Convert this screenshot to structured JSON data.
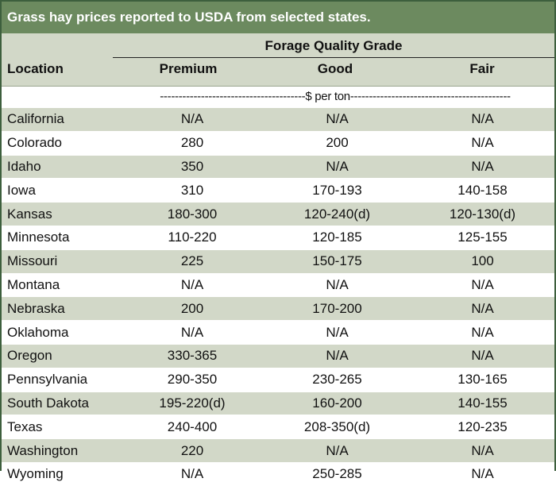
{
  "title": "Grass hay prices reported to USDA from selected states.",
  "header": {
    "location": "Location",
    "group": "Forage Quality Grade",
    "columns": [
      "Premium",
      "Good",
      "Fair"
    ]
  },
  "unit_row": "---------------------------------------$ per ton-------------------------------------------",
  "rows": [
    {
      "location": "California",
      "premium": "N/A",
      "good": "N/A",
      "fair": "N/A"
    },
    {
      "location": "Colorado",
      "premium": "280",
      "good": "200",
      "fair": "N/A"
    },
    {
      "location": "Idaho",
      "premium": "350",
      "good": "N/A",
      "fair": "N/A"
    },
    {
      "location": "Iowa",
      "premium": "310",
      "good": "170-193",
      "fair": "140-158"
    },
    {
      "location": "Kansas",
      "premium": "180-300",
      "good": "120-240(d)",
      "fair": "120-130(d)"
    },
    {
      "location": "Minnesota",
      "premium": "110-220",
      "good": "120-185",
      "fair": "125-155"
    },
    {
      "location": "Missouri",
      "premium": "225",
      "good": "150-175",
      "fair": "100"
    },
    {
      "location": "Montana",
      "premium": "N/A",
      "good": "N/A",
      "fair": "N/A"
    },
    {
      "location": "Nebraska",
      "premium": "200",
      "good": "170-200",
      "fair": "N/A"
    },
    {
      "location": "Oklahoma",
      "premium": "N/A",
      "good": "N/A",
      "fair": "N/A"
    },
    {
      "location": "Oregon",
      "premium": "330-365",
      "good": "N/A",
      "fair": "N/A"
    },
    {
      "location": "Pennsylvania",
      "premium": "290-350",
      "good": "230-265",
      "fair": "130-165"
    },
    {
      "location": "South Dakota",
      "premium": "195-220(d)",
      "good": "160-200",
      "fair": "140-155"
    },
    {
      "location": "Texas",
      "premium": "240-400",
      "good": "208-350(d)",
      "fair": "120-235"
    },
    {
      "location": "Washington",
      "premium": "220",
      "good": "N/A",
      "fair": "N/A"
    },
    {
      "location": "Wyoming",
      "premium": "N/A",
      "good": "250-285",
      "fair": "N/A"
    }
  ]
}
